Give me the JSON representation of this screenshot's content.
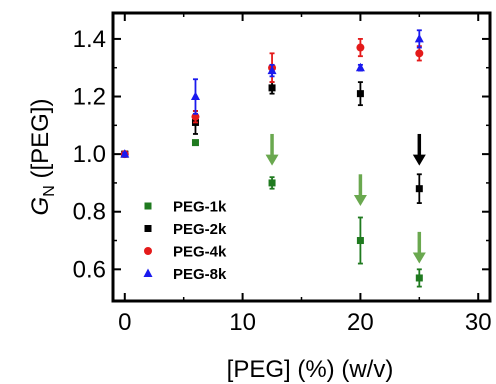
{
  "chart_data": {
    "type": "scatter",
    "xlabel": "[PEG] (%) (w/v)",
    "ylabel_main": "G",
    "ylabel_sub": "N",
    "ylabel_rest": " ([PEG])",
    "xlim": [
      -1,
      31
    ],
    "ylim": [
      0.49,
      1.49
    ],
    "xticks": [
      0,
      10,
      20,
      30
    ],
    "xtick_labels": [
      "0",
      "10",
      "20",
      "30"
    ],
    "yticks": [
      0.6,
      0.8,
      1.0,
      1.2,
      1.4
    ],
    "ytick_labels": [
      "0.6",
      "0.8",
      "1.0",
      "1.2",
      "1.4"
    ],
    "grid": false,
    "legend_position": "bottom-left",
    "series": [
      {
        "name": "PEG-1k",
        "color": "#1f7a1f",
        "marker": "square",
        "points": [
          {
            "x": 0,
            "y": 1.0,
            "err": 0.005
          },
          {
            "x": 6,
            "y": 1.04,
            "err": 0.005
          },
          {
            "x": 12.5,
            "y": 0.9,
            "err": 0.02
          },
          {
            "x": 20,
            "y": 0.7,
            "err": 0.08
          },
          {
            "x": 25,
            "y": 0.57,
            "err": 0.03
          }
        ]
      },
      {
        "name": "PEG-2k",
        "color": "#000000",
        "marker": "square",
        "points": [
          {
            "x": 0,
            "y": 1.0,
            "err": 0.005
          },
          {
            "x": 6,
            "y": 1.11,
            "err": 0.04
          },
          {
            "x": 12.5,
            "y": 1.23,
            "err": 0.02
          },
          {
            "x": 20,
            "y": 1.21,
            "err": 0.04
          },
          {
            "x": 25,
            "y": 0.88,
            "err": 0.05
          }
        ]
      },
      {
        "name": "PEG-4k",
        "color": "#e41a1a",
        "marker": "circle",
        "points": [
          {
            "x": 0,
            "y": 1.0,
            "err": 0.005
          },
          {
            "x": 6,
            "y": 1.13,
            "err": 0.02
          },
          {
            "x": 12.5,
            "y": 1.3,
            "err": 0.05
          },
          {
            "x": 20,
            "y": 1.37,
            "err": 0.03
          },
          {
            "x": 25,
            "y": 1.35,
            "err": 0.025
          }
        ]
      },
      {
        "name": "PEG-8k",
        "color": "#1a1aee",
        "marker": "triangle",
        "points": [
          {
            "x": 0,
            "y": 1.0,
            "err": 0.005
          },
          {
            "x": 6,
            "y": 1.2,
            "err": 0.06
          },
          {
            "x": 12.5,
            "y": 1.29,
            "err": 0.02
          },
          {
            "x": 20,
            "y": 1.3,
            "err": 0.01
          },
          {
            "x": 25,
            "y": 1.4,
            "err": 0.03
          }
        ]
      }
    ],
    "annotations": [
      {
        "type": "arrow",
        "x": 12.5,
        "y_from": 1.07,
        "y_to": 0.96,
        "color": "#6aa84f"
      },
      {
        "type": "arrow",
        "x": 20,
        "y_from": 0.93,
        "y_to": 0.82,
        "color": "#6aa84f"
      },
      {
        "type": "arrow",
        "x": 25,
        "y_from": 1.07,
        "y_to": 0.96,
        "color": "#000000"
      },
      {
        "type": "arrow",
        "x": 25,
        "y_from": 0.73,
        "y_to": 0.62,
        "color": "#6aa84f"
      }
    ]
  }
}
